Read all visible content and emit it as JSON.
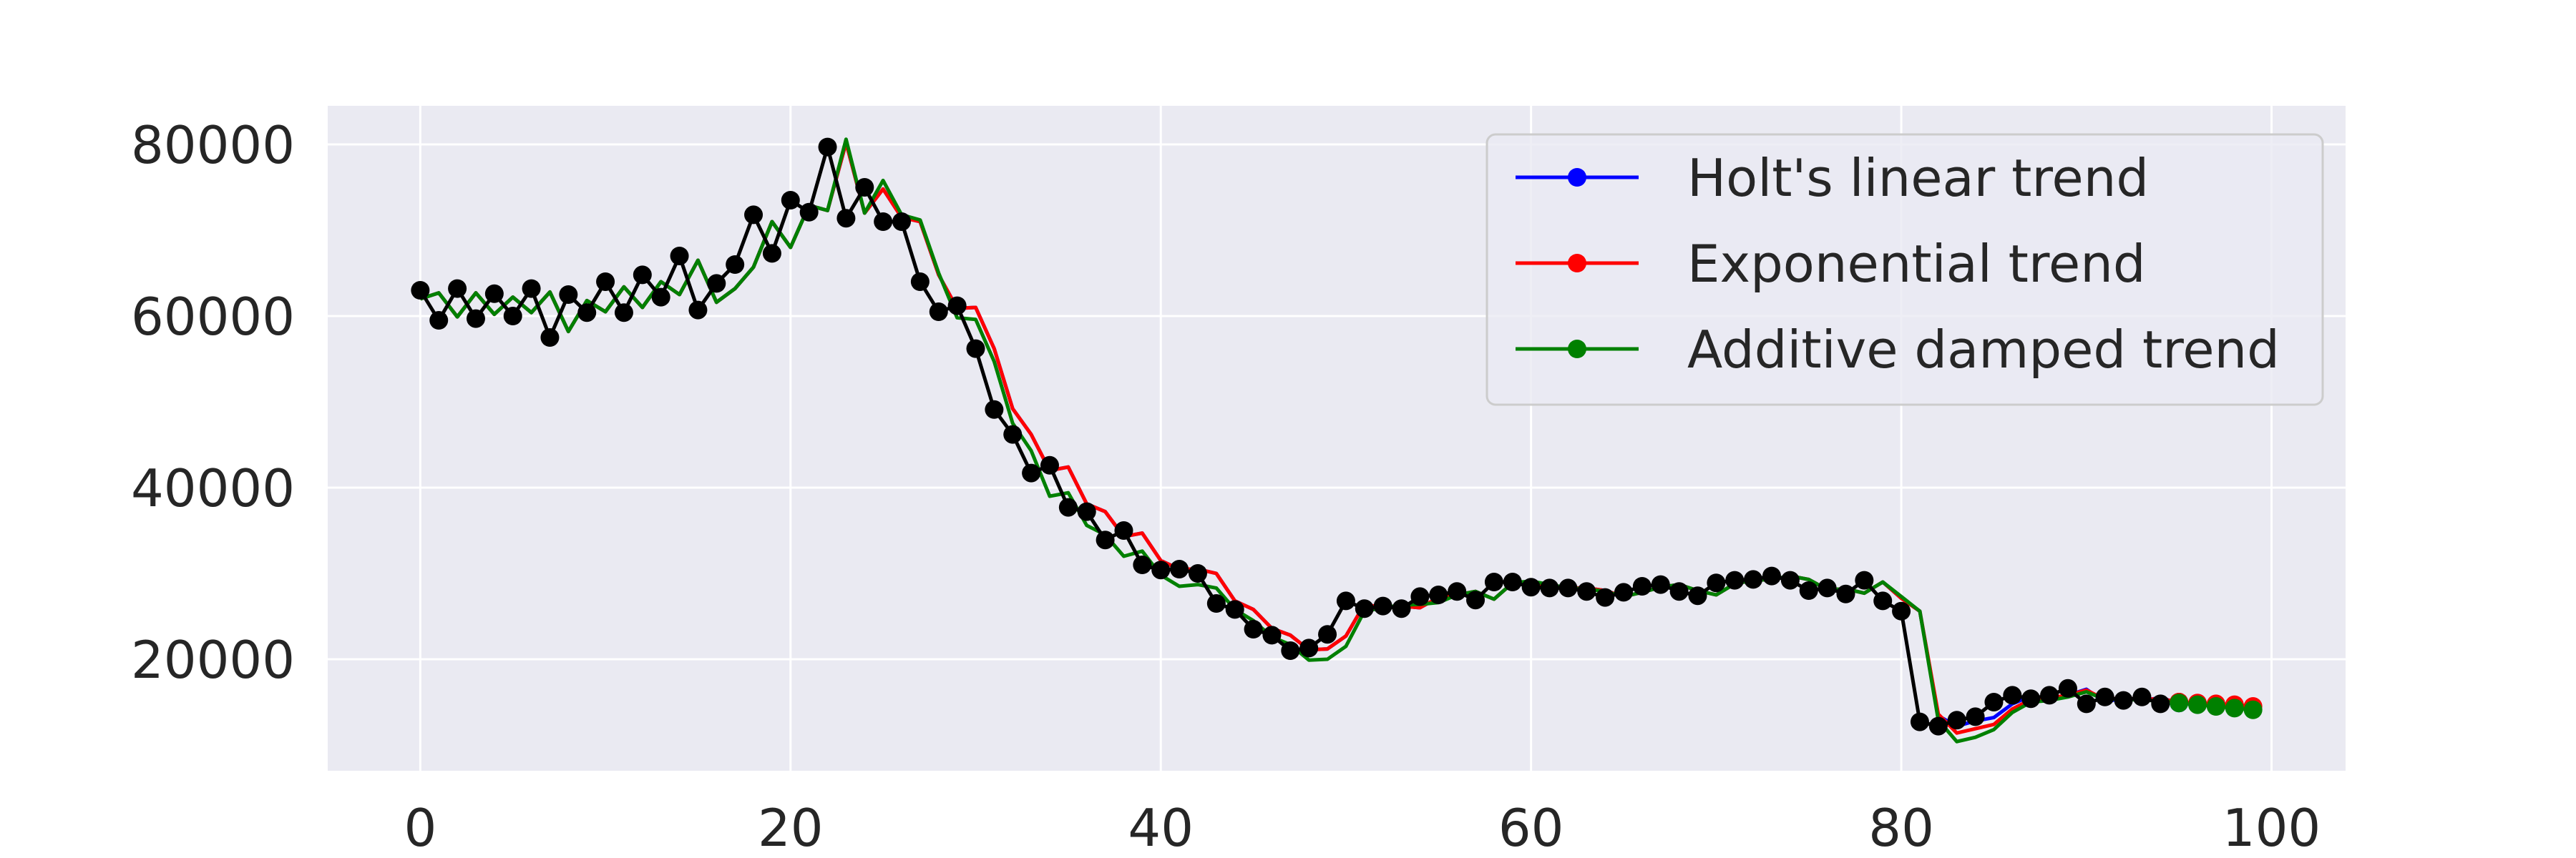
{
  "chart_data": {
    "type": "line",
    "title": "",
    "xlabel": "",
    "ylabel": "",
    "xlim": [
      -5,
      104
    ],
    "ylim": [
      7000,
      84500
    ],
    "grid": true,
    "legend_position": "top-right",
    "x_ticks": [
      0,
      20,
      40,
      60,
      80,
      100
    ],
    "y_ticks": [
      20000,
      40000,
      60000,
      80000
    ],
    "colors": {
      "observed": "#000000",
      "holt": "#0000ff",
      "exponential": "#ff0000",
      "damped": "#008000",
      "plot_bg": "#eaeaf2",
      "grid": "#ffffff"
    },
    "observed": {
      "x": [
        0,
        1,
        2,
        3,
        4,
        5,
        6,
        7,
        8,
        9,
        10,
        11,
        12,
        13,
        14,
        15,
        16,
        17,
        18,
        19,
        20,
        21,
        22,
        23,
        24,
        25,
        26,
        27,
        28,
        29,
        30,
        31,
        32,
        33,
        34,
        35,
        36,
        37,
        38,
        39,
        40,
        41,
        42,
        43,
        44,
        45,
        46,
        47,
        48,
        49,
        50,
        51,
        52,
        53,
        54,
        55,
        56,
        57,
        58,
        59,
        60,
        61,
        62,
        63,
        64,
        65,
        66,
        67,
        68,
        69,
        70,
        71,
        72,
        73,
        74,
        75,
        76,
        77,
        78,
        79,
        80,
        81,
        82,
        83,
        84,
        85,
        86,
        87,
        88,
        89,
        90,
        91,
        92,
        93,
        94,
        95
      ],
      "values": [
        63000,
        59500,
        63200,
        59700,
        62600,
        60000,
        63200,
        57500,
        62500,
        60400,
        64000,
        60400,
        64800,
        62200,
        67000,
        60700,
        63800,
        66000,
        71800,
        67300,
        73500,
        72100,
        79700,
        71400,
        75000,
        71000,
        71000,
        64000,
        60500,
        61200,
        56200,
        49100,
        46200,
        41700,
        42600,
        37700,
        37200,
        33900,
        35000,
        31000,
        30400,
        30500,
        30000,
        26500,
        25800,
        23500,
        22800,
        21000,
        21300,
        22900,
        26800,
        25900,
        26200,
        25900,
        27300,
        27500,
        27900,
        26900,
        29000,
        29000,
        28400,
        28300,
        28300,
        27900,
        27200,
        27800,
        28500,
        28700,
        27900,
        27400,
        28900,
        29200,
        29300,
        29700,
        29200,
        28000,
        28300,
        27600,
        29200,
        26800,
        25600,
        12700,
        12200,
        12900,
        13300,
        15000,
        15800,
        15400,
        15800,
        16600,
        14800,
        15600,
        15200,
        15600,
        14800,
        15000
      ]
    },
    "series": [
      {
        "name": "Holt's linear trend",
        "x": [
          0,
          1,
          2,
          3,
          4,
          5,
          6,
          7,
          8,
          9,
          10,
          11,
          12,
          13,
          14,
          15,
          16,
          17,
          18,
          19,
          20,
          21,
          22,
          23,
          24,
          25,
          26,
          27,
          28,
          29,
          30,
          31,
          32,
          33,
          34,
          35,
          36,
          37,
          38,
          39,
          40,
          41,
          42,
          43,
          44,
          45,
          46,
          47,
          48,
          49,
          50,
          51,
          52,
          53,
          54,
          55,
          56,
          57,
          58,
          59,
          60,
          61,
          62,
          63,
          64,
          65,
          66,
          67,
          68,
          69,
          70,
          71,
          72,
          73,
          74,
          75,
          76,
          77,
          78,
          79,
          80,
          81,
          82,
          83,
          84,
          85,
          86,
          87,
          88,
          89,
          90,
          91,
          92,
          93,
          94,
          95
        ],
        "values": [
          62000,
          62700,
          59900,
          62700,
          60200,
          62200,
          60400,
          62800,
          58200,
          61800,
          60500,
          63400,
          61000,
          64000,
          62500,
          66500,
          61600,
          63200,
          65700,
          71000,
          68000,
          72900,
          72300,
          80200,
          72000,
          74800,
          71500,
          71000,
          64800,
          60900,
          61000,
          56200,
          49200,
          46200,
          42000,
          42400,
          38100,
          37200,
          34300,
          34700,
          31500,
          30500,
          30500,
          30000,
          26800,
          25800,
          23600,
          22800,
          21100,
          21200,
          22700,
          26400,
          26000,
          26200,
          26000,
          27200,
          27500,
          27900,
          27000,
          28900,
          29000,
          28500,
          28300,
          28300,
          28000,
          27300,
          27800,
          28400,
          28700,
          28000,
          27500,
          28800,
          29200,
          29300,
          29700,
          29300,
          28100,
          28200,
          27700,
          29000,
          27100,
          25600,
          13400,
          12200,
          12800,
          13200,
          14800,
          15700,
          15400,
          15800,
          16500,
          15000,
          15500,
          15200,
          15500,
          14900
        ]
      },
      {
        "name": "Exponential trend",
        "x": [
          0,
          1,
          2,
          3,
          4,
          5,
          6,
          7,
          8,
          9,
          10,
          11,
          12,
          13,
          14,
          15,
          16,
          17,
          18,
          19,
          20,
          21,
          22,
          23,
          24,
          25,
          26,
          27,
          28,
          29,
          30,
          31,
          32,
          33,
          34,
          35,
          36,
          37,
          38,
          39,
          40,
          41,
          42,
          43,
          44,
          45,
          46,
          47,
          48,
          49,
          50,
          51,
          52,
          53,
          54,
          55,
          56,
          57,
          58,
          59,
          60,
          61,
          62,
          63,
          64,
          65,
          66,
          67,
          68,
          69,
          70,
          71,
          72,
          73,
          74,
          75,
          76,
          77,
          78,
          79,
          80,
          81,
          82,
          83,
          84,
          85,
          86,
          87,
          88,
          89,
          90,
          91,
          92,
          93,
          94,
          95,
          96,
          97,
          98,
          99
        ],
        "values": [
          62000,
          62700,
          59900,
          62700,
          60200,
          62200,
          60400,
          62800,
          58200,
          61800,
          60500,
          63400,
          61000,
          64000,
          62500,
          66500,
          61600,
          63200,
          65700,
          71000,
          68000,
          72900,
          72300,
          80200,
          72000,
          74800,
          71500,
          71000,
          64800,
          60900,
          61000,
          56200,
          49200,
          46200,
          42000,
          42400,
          38100,
          37200,
          34300,
          34700,
          31500,
          30500,
          30500,
          30000,
          26800,
          25800,
          23600,
          22800,
          21100,
          21200,
          22700,
          26400,
          26000,
          26200,
          26000,
          27200,
          27500,
          27900,
          27000,
          28900,
          29000,
          28500,
          28300,
          28300,
          28000,
          27300,
          27800,
          28400,
          28700,
          28000,
          27500,
          28800,
          29200,
          29300,
          29700,
          29300,
          28100,
          28200,
          27700,
          29000,
          27100,
          25600,
          13600,
          11400,
          11900,
          12400,
          14200,
          15300,
          15500,
          15800,
          16400,
          15300,
          15500,
          15300,
          15400,
          15000,
          14900,
          14800,
          14700,
          14500
        ]
      },
      {
        "name": "Additive damped trend",
        "x": [
          0,
          1,
          2,
          3,
          4,
          5,
          6,
          7,
          8,
          9,
          10,
          11,
          12,
          13,
          14,
          15,
          16,
          17,
          18,
          19,
          20,
          21,
          22,
          23,
          24,
          25,
          26,
          27,
          28,
          29,
          30,
          31,
          32,
          33,
          34,
          35,
          36,
          37,
          38,
          39,
          40,
          41,
          42,
          43,
          44,
          45,
          46,
          47,
          48,
          49,
          50,
          51,
          52,
          53,
          54,
          55,
          56,
          57,
          58,
          59,
          60,
          61,
          62,
          63,
          64,
          65,
          66,
          67,
          68,
          69,
          70,
          71,
          72,
          73,
          74,
          75,
          76,
          77,
          78,
          79,
          80,
          81,
          82,
          83,
          84,
          85,
          86,
          87,
          88,
          89,
          90,
          91,
          92,
          93,
          94,
          95,
          96,
          97,
          98,
          99
        ],
        "values": [
          62000,
          62700,
          59900,
          62700,
          60200,
          62200,
          60400,
          62800,
          58200,
          61800,
          60500,
          63400,
          61000,
          64000,
          62500,
          66500,
          61600,
          63200,
          65700,
          71000,
          68000,
          72900,
          72300,
          80600,
          72000,
          75800,
          71800,
          71200,
          65000,
          59800,
          59600,
          54700,
          47500,
          44300,
          39000,
          39400,
          35600,
          34500,
          32000,
          32600,
          29800,
          28500,
          28700,
          28300,
          25800,
          24500,
          22600,
          21700,
          19900,
          20000,
          21500,
          25600,
          26000,
          26300,
          26400,
          26600,
          27500,
          27900,
          27000,
          28900,
          29100,
          28700,
          28300,
          28200,
          27900,
          27300,
          27800,
          28400,
          28700,
          28000,
          27500,
          28800,
          29200,
          29300,
          29700,
          29300,
          28100,
          28200,
          27700,
          29000,
          27300,
          25600,
          12900,
          10400,
          10900,
          11800,
          13800,
          15000,
          15200,
          15600,
          16200,
          15300,
          15400,
          15200,
          15200,
          14900,
          14700,
          14500,
          14300,
          14100
        ]
      }
    ],
    "forecast_markers": {
      "x": [
        95,
        96,
        97,
        98,
        99
      ]
    }
  }
}
